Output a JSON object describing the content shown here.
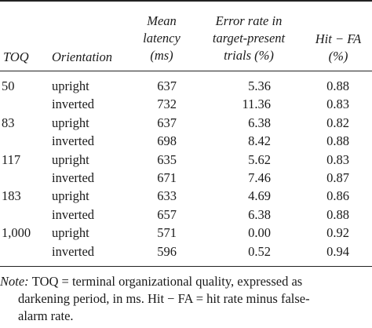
{
  "table": {
    "headers": {
      "toq": "TOQ",
      "orientation": "Orientation",
      "latency": [
        "Mean",
        "latency",
        "(ms)"
      ],
      "error": [
        "Error rate in",
        "target-present",
        "trials (%)"
      ],
      "hitfa": [
        "Hit − FA",
        "(%)"
      ]
    },
    "rows": [
      {
        "toq": "50",
        "orientation": "upright",
        "latency": "637",
        "error": "5.36",
        "hitfa": "0.88"
      },
      {
        "toq": "",
        "orientation": "inverted",
        "latency": "732",
        "error": "11.36",
        "hitfa": "0.83"
      },
      {
        "toq": "83",
        "orientation": "upright",
        "latency": "637",
        "error": "6.38",
        "hitfa": "0.82"
      },
      {
        "toq": "",
        "orientation": "inverted",
        "latency": "698",
        "error": "8.42",
        "hitfa": "0.88"
      },
      {
        "toq": "117",
        "orientation": "upright",
        "latency": "635",
        "error": "5.62",
        "hitfa": "0.83"
      },
      {
        "toq": "",
        "orientation": "inverted",
        "latency": "671",
        "error": "7.46",
        "hitfa": "0.87"
      },
      {
        "toq": "183",
        "orientation": "upright",
        "latency": "633",
        "error": "4.69",
        "hitfa": "0.86"
      },
      {
        "toq": "",
        "orientation": "inverted",
        "latency": "657",
        "error": "6.38",
        "hitfa": "0.88"
      },
      {
        "toq": "1,000",
        "orientation": "upright",
        "latency": "571",
        "error": "0.00",
        "hitfa": "0.92"
      },
      {
        "toq": "",
        "orientation": "inverted",
        "latency": "596",
        "error": "0.52",
        "hitfa": "0.94"
      }
    ]
  },
  "note": {
    "label": "Note:",
    "line1": "TOQ = terminal organizational quality, expressed as",
    "line2": "darkening period, in ms. Hit − FA = hit rate minus false-",
    "line3": "alarm rate."
  }
}
